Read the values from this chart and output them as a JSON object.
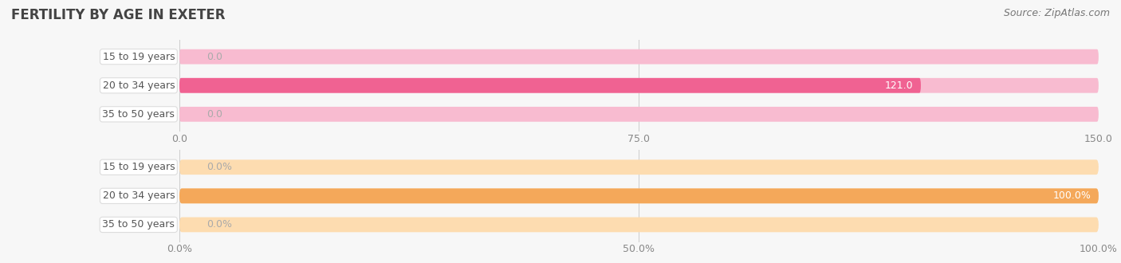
{
  "title": "FERTILITY BY AGE IN EXETER",
  "source": "Source: ZipAtlas.com",
  "top_chart": {
    "categories": [
      "15 to 19 years",
      "20 to 34 years",
      "35 to 50 years"
    ],
    "values": [
      0.0,
      121.0,
      0.0
    ],
    "xlim": [
      0,
      150.0
    ],
    "xticks": [
      0.0,
      75.0,
      150.0
    ],
    "xtick_labels": [
      "0.0",
      "75.0",
      "150.0"
    ],
    "bar_color": "#F06292",
    "bar_bg_color": "#F8BBD0",
    "value_color_inside": "#ffffff",
    "value_color_outside": "#aaaaaa"
  },
  "bottom_chart": {
    "categories": [
      "15 to 19 years",
      "20 to 34 years",
      "35 to 50 years"
    ],
    "values": [
      0.0,
      100.0,
      0.0
    ],
    "xlim": [
      0,
      100.0
    ],
    "xticks": [
      0.0,
      50.0,
      100.0
    ],
    "xtick_labels": [
      "0.0%",
      "50.0%",
      "100.0%"
    ],
    "bar_color": "#F4A85A",
    "bar_bg_color": "#FDDCB0",
    "value_color_inside": "#ffffff",
    "value_color_outside": "#aaaaaa"
  },
  "bg_color": "#f7f7f7",
  "label_color": "#555555",
  "title_fontsize": 12,
  "source_fontsize": 9,
  "label_fontsize": 9,
  "value_fontsize": 9,
  "tick_fontsize": 9
}
